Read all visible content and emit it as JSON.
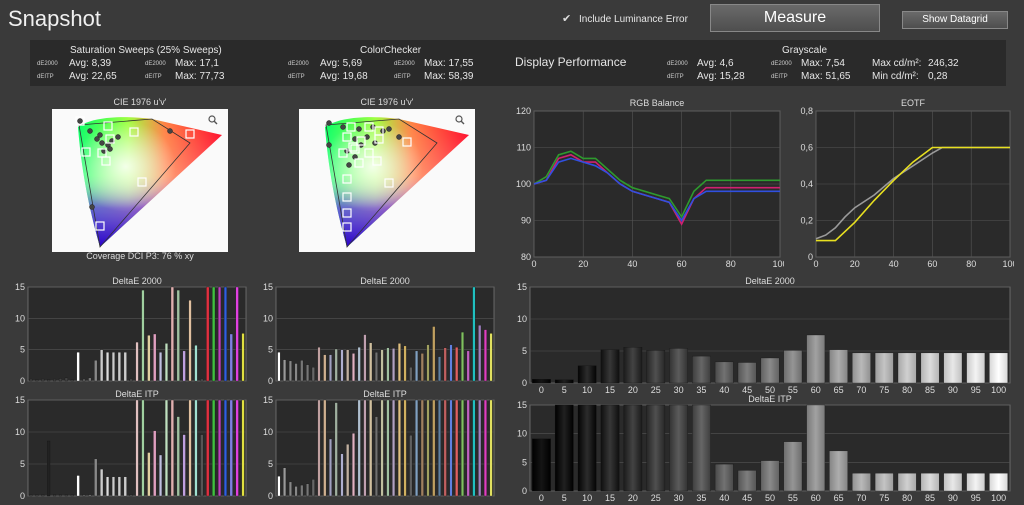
{
  "title": "Snapshot",
  "lum_checkbox": {
    "label": "Include Luminance Error",
    "checked": true
  },
  "measure_label": "Measure",
  "datagrid_label": "Show Datagrid",
  "summary": {
    "sat": {
      "title": "Saturation Sweeps (25% Sweeps)",
      "de2000_label": "dE2000",
      "deitp_label": "dEITP",
      "avg2000": "Avg: 8,39",
      "max2000": "Max: 17,1",
      "avgitp": "Avg: 22,65",
      "maxitp": "Max: 77,73"
    },
    "cc": {
      "title": "ColorChecker",
      "de2000_label": "dE2000",
      "deitp_label": "dEITP",
      "avg2000": "Avg: 5,69",
      "max2000": "Max: 17,55",
      "avgitp": "Avg: 19,68",
      "maxitp": "Max: 58,39"
    },
    "display_performance": "Display Performance",
    "gs": {
      "title": "Grayscale",
      "de2000_label": "dE2000",
      "deitp_label": "dEITP",
      "avg2000": "Avg: 4,6",
      "max2000": "Max: 7,54",
      "avgitp": "Avg: 15,28",
      "maxitp": "Max: 51,65",
      "maxcd": "Max cd/m²:",
      "maxcd_val": "246,32",
      "mincd": "Min cd/m²:",
      "mincd_val": "0,28"
    }
  },
  "cie1": {
    "title": "CIE 1976 u'v'",
    "coverage": "Coverage DCI P3:  76 % xy",
    "icon": "magnifier-icon"
  },
  "cie2": {
    "title": "CIE 1976 u'v'",
    "icon": "magnifier-icon"
  },
  "colors": {
    "bg": "#3a3a3a",
    "panel": "#2a2a2a",
    "grid": "#555555"
  },
  "chart_data": [
    {
      "type": "line",
      "title": "RGB Balance",
      "x": [
        0,
        5,
        10,
        15,
        20,
        25,
        30,
        35,
        40,
        45,
        50,
        55,
        60,
        65,
        70,
        75,
        80,
        85,
        90,
        95,
        100
      ],
      "xlim": [
        0,
        100
      ],
      "ylim": [
        80,
        120
      ],
      "xticks": [
        0,
        20,
        40,
        60,
        80,
        100
      ],
      "yticks": [
        80,
        90,
        100,
        110,
        120
      ],
      "series": [
        {
          "color": "#2e9a2e",
          "values": [
            100,
            102,
            108,
            109,
            107,
            107,
            104,
            101,
            99,
            98,
            97,
            96,
            91,
            98,
            101,
            101,
            101,
            101,
            101,
            101,
            101
          ]
        },
        {
          "color": "#d02070",
          "values": [
            100,
            101,
            107,
            108,
            106,
            106,
            103,
            100,
            98,
            97,
            96,
            95,
            89,
            96,
            99,
            99,
            99,
            99,
            99,
            99,
            99
          ]
        },
        {
          "color": "#3050e0",
          "values": [
            100,
            101,
            106,
            107,
            106,
            105,
            103,
            100,
            98,
            97,
            96,
            95,
            90,
            96,
            98,
            98,
            98,
            98,
            98,
            98,
            98
          ]
        }
      ]
    },
    {
      "type": "line",
      "title": "EOTF",
      "xlim": [
        0,
        100
      ],
      "ylim": [
        0,
        0.8
      ],
      "xticks": [
        0,
        20,
        40,
        60,
        80,
        100
      ],
      "yticks": [
        0,
        0.2,
        0.4,
        0.6,
        0.8
      ],
      "ytick_labels": [
        "0",
        "0,2",
        "0,4",
        "0,6",
        "0,8"
      ],
      "series": [
        {
          "color": "#9a9a9a",
          "x": [
            0,
            5,
            10,
            15,
            20,
            30,
            40,
            50,
            60,
            65,
            70,
            80,
            90,
            100
          ],
          "values": [
            0.1,
            0.12,
            0.16,
            0.22,
            0.27,
            0.34,
            0.43,
            0.5,
            0.57,
            0.6,
            0.6,
            0.6,
            0.6,
            0.6
          ]
        },
        {
          "color": "#e8e020",
          "x": [
            0,
            10,
            20,
            30,
            40,
            50,
            60,
            65,
            70,
            80,
            90,
            100
          ],
          "values": [
            0.09,
            0.09,
            0.19,
            0.31,
            0.42,
            0.52,
            0.6,
            0.6,
            0.6,
            0.6,
            0.6,
            0.6
          ]
        }
      ]
    },
    {
      "type": "bar",
      "title": "DeltaE 2000",
      "ylim": [
        0,
        15
      ],
      "yticks": [
        0,
        5,
        10,
        15
      ],
      "values": [
        0.3,
        0.2,
        0.3,
        0.2,
        0.3,
        0.4,
        0.5,
        0.2,
        4.6,
        0.3,
        0.5,
        3.3,
        5.0,
        4.6,
        4.6,
        4.6,
        4.6,
        0.3,
        6.2,
        14.5,
        7.3,
        7.5,
        4.6,
        6.0,
        15.0,
        14.5,
        4.8,
        12.9,
        5.7,
        0.3,
        15.0,
        15.0,
        15.0,
        15.0,
        7.5,
        15.0,
        7.6
      ],
      "colors": [
        "#444",
        "#444",
        "#444",
        "#444",
        "#444",
        "#444",
        "#444",
        "#444",
        "#ffffff",
        "#666",
        "#777",
        "#888",
        "#cccccc",
        "#dddddd",
        "#cccccc",
        "#cccccc",
        "#cccccc",
        "#555",
        "#e0c0c0",
        "#a0d0a0",
        "#e0d0a0",
        "#e0a0c0",
        "#c0c0e0",
        "#c0e0c0",
        "#e0b0b0",
        "#a0c0a0",
        "#c0a0e0",
        "#e0c0a0",
        "#a0e0d0",
        "#555",
        "#e03040",
        "#40c040",
        "#c040c0",
        "#3060e0",
        "#8080e0",
        "#e040e0",
        "#e0e040"
      ]
    },
    {
      "type": "bar",
      "title": "DeltaE 2000",
      "ylim": [
        0,
        15
      ],
      "yticks": [
        0,
        5,
        10,
        15
      ],
      "values": [
        4.6,
        3.4,
        3.2,
        2.8,
        3.3,
        2.6,
        2.2,
        5.4,
        4.2,
        4.2,
        5.1,
        5.0,
        5.0,
        4.4,
        5.4,
        7.4,
        6.1,
        4.6,
        5.0,
        5.3,
        5.2,
        6.0,
        5.6,
        2.2,
        4.8,
        4.4,
        5.8,
        8.7,
        3.9,
        5.3,
        5.8,
        5.4,
        7.8,
        4.8,
        15.0,
        8.9,
        8.2,
        7.6
      ],
      "colors": [
        "#ffffff",
        "#999",
        "#888",
        "#888",
        "#777",
        "#777",
        "#666",
        "#c0a0a0",
        "#d0b090",
        "#a0a0c0",
        "#a0b0a0",
        "#b0b0d0",
        "#c0b0a0",
        "#e0b0c0",
        "#b0c0d0",
        "#c0a0b0",
        "#d0c0a0",
        "#707070",
        "#c0c0a0",
        "#a0c0a0",
        "#b0a0c0",
        "#e0c080",
        "#d0b060",
        "#606060",
        "#80a0c0",
        "#a08060",
        "#a0a060",
        "#c0a060",
        "#6080a0",
        "#c06060",
        "#6080e0",
        "#e06060",
        "#80c060",
        "#c060c0",
        "#20c0c0",
        "#a080c0",
        "#e040c0",
        "#e0e060"
      ]
    },
    {
      "type": "bar",
      "title": "DeltaE 2000",
      "categories": [
        "0",
        "5",
        "10",
        "15",
        "20",
        "25",
        "30",
        "35",
        "40",
        "45",
        "50",
        "55",
        "60",
        "65",
        "70",
        "75",
        "80",
        "85",
        "90",
        "95",
        "100"
      ],
      "ylim": [
        0,
        15
      ],
      "yticks": [
        0,
        5,
        10,
        15
      ],
      "values": [
        0.6,
        0.5,
        2.7,
        5.2,
        5.6,
        5.1,
        5.4,
        4.2,
        3.3,
        3.2,
        3.9,
        5.1,
        7.5,
        5.2,
        4.7,
        4.7,
        4.7,
        4.7,
        4.7,
        4.7,
        4.7
      ]
    },
    {
      "type": "bar",
      "title": "DeltaE ITP",
      "ylim": [
        0,
        15
      ],
      "yticks": [
        0,
        5,
        10,
        15
      ],
      "values": [
        0.2,
        0.2,
        0.2,
        8.6,
        0.2,
        0.2,
        0.2,
        0.2,
        3.2,
        0.2,
        0.2,
        5.8,
        4.2,
        3.0,
        3.0,
        3.0,
        3.0,
        0.2,
        15.0,
        15.0,
        6.8,
        10.2,
        6.4,
        15.0,
        15.0,
        12.4,
        9.6,
        15.0,
        15.0,
        9.6,
        15.0,
        15.0,
        15.0,
        15.0,
        15.0,
        15.0,
        15.0
      ],
      "colors": [
        "#444",
        "#444",
        "#444",
        "#222",
        "#444",
        "#444",
        "#444",
        "#444",
        "#ffffff",
        "#666",
        "#777",
        "#888",
        "#cccccc",
        "#dddddd",
        "#cccccc",
        "#cccccc",
        "#cccccc",
        "#555",
        "#e0c0c0",
        "#a0d0a0",
        "#e0d0a0",
        "#e0a0c0",
        "#c0c0e0",
        "#c0e0c0",
        "#e0b0b0",
        "#a0c0a0",
        "#c0a0e0",
        "#e0c0a0",
        "#a0e0d0",
        "#555",
        "#e03040",
        "#40c040",
        "#c040c0",
        "#3060e0",
        "#8080e0",
        "#e040e0",
        "#e0e040"
      ]
    },
    {
      "type": "bar",
      "title": "DeltaE ITP",
      "ylim": [
        0,
        15
      ],
      "yticks": [
        0,
        5,
        10,
        15
      ],
      "values": [
        3.1,
        4.4,
        2.2,
        1.5,
        1.7,
        1.9,
        2.6,
        15.0,
        15.0,
        8.9,
        14.6,
        6.6,
        8.1,
        9.8,
        15.0,
        15.0,
        15.0,
        12.4,
        15.0,
        15.0,
        15.0,
        15.0,
        15.0,
        9.5,
        15.0,
        15.0,
        15.0,
        15.0,
        15.0,
        15.0,
        15.0,
        15.0,
        15.0,
        15.0,
        15.0,
        15.0,
        15.0,
        15.0
      ],
      "colors": [
        "#ffffff",
        "#999",
        "#888",
        "#888",
        "#777",
        "#777",
        "#666",
        "#c0a0a0",
        "#d0b090",
        "#a0a0c0",
        "#a0b0a0",
        "#b0b0d0",
        "#c0b0a0",
        "#e0b0c0",
        "#b0c0d0",
        "#c0a0b0",
        "#d0c0a0",
        "#707070",
        "#c0c0a0",
        "#a0c0a0",
        "#b0a0c0",
        "#e0c080",
        "#d0b060",
        "#606060",
        "#80a0c0",
        "#a08060",
        "#a0a060",
        "#c0a060",
        "#6080a0",
        "#c06060",
        "#6080e0",
        "#e06060",
        "#80c060",
        "#c060c0",
        "#20c0c0",
        "#a080c0",
        "#e040c0",
        "#e0e060"
      ]
    },
    {
      "type": "bar",
      "title": "DeltaE ITP",
      "categories": [
        "0",
        "5",
        "10",
        "15",
        "20",
        "25",
        "30",
        "35",
        "40",
        "45",
        "50",
        "55",
        "60",
        "65",
        "70",
        "75",
        "80",
        "85",
        "90",
        "95",
        "100"
      ],
      "ylim": [
        0,
        15
      ],
      "yticks": [
        0,
        5,
        10,
        15
      ],
      "values": [
        9.1,
        15.0,
        15.0,
        15.0,
        15.0,
        15.0,
        15.0,
        15.0,
        4.7,
        3.6,
        5.3,
        8.6,
        15.0,
        7.0,
        3.1,
        3.1,
        3.1,
        3.1,
        3.1,
        3.1,
        3.1
      ]
    }
  ]
}
